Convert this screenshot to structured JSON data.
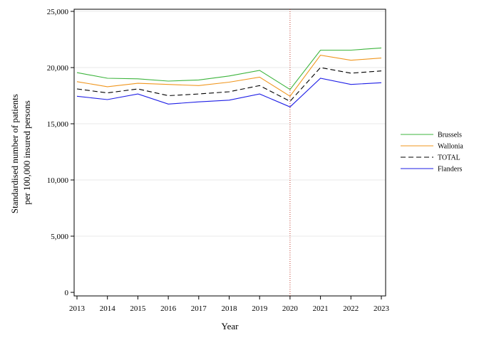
{
  "chart_data": {
    "type": "line",
    "title": "",
    "xlabel": "Year",
    "ylabel": [
      "Standardised number of patients",
      "per 100,000 insured persons"
    ],
    "x": [
      2013,
      2014,
      2015,
      2016,
      2017,
      2018,
      2019,
      2020,
      2021,
      2022,
      2023
    ],
    "x_tick_labels": [
      "2013",
      "2014",
      "2015",
      "2016",
      "2017",
      "2018",
      "2019",
      "2020",
      "2021",
      "2022",
      "2023"
    ],
    "xlim": [
      2013,
      2023
    ],
    "ylim": [
      0,
      25000
    ],
    "y_ticks": [
      0,
      5000,
      10000,
      15000,
      20000,
      25000
    ],
    "y_tick_labels": [
      "0",
      "5,000",
      "10,000",
      "15,000",
      "20,000",
      "25,000"
    ],
    "grid": "horizontal",
    "legend_position": "right",
    "reference_line": {
      "x": 2020,
      "style": "dotted",
      "color": "#c0392b"
    },
    "series": [
      {
        "name": "Brussels",
        "color": "#3cb43c",
        "dash": "solid",
        "values": [
          19550,
          19050,
          19000,
          18800,
          18900,
          19250,
          19750,
          18050,
          21550,
          21550,
          21750
        ]
      },
      {
        "name": "Wallonia",
        "color": "#f0961e",
        "dash": "solid",
        "values": [
          18750,
          18300,
          18600,
          18500,
          18400,
          18700,
          19150,
          17450,
          21100,
          20650,
          20850
        ]
      },
      {
        "name": "TOTAL",
        "color": "#000000",
        "dash": "dashed",
        "values": [
          18100,
          17750,
          18100,
          17500,
          17650,
          17850,
          18400,
          17000,
          20000,
          19500,
          19700
        ]
      },
      {
        "name": "Flanders",
        "color": "#1e1ee6",
        "dash": "solid",
        "values": [
          17450,
          17150,
          17650,
          16750,
          16950,
          17100,
          17650,
          16500,
          19050,
          18500,
          18650
        ]
      }
    ]
  }
}
